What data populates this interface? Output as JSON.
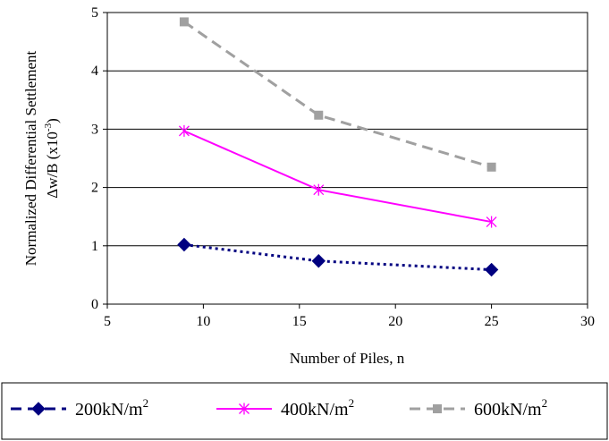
{
  "chart_data": {
    "type": "line",
    "title": "",
    "xlabel": "Number of Piles, n",
    "ylabel_line1": "Normalized Differential Settlement",
    "ylabel_line2_prefix": "Δw/B (x10",
    "ylabel_line2_exp": "-3",
    "ylabel_line2_suffix": ")",
    "xlim": [
      5,
      30
    ],
    "ylim": [
      0,
      5
    ],
    "xticks": [
      "5",
      "10",
      "15",
      "20",
      "25",
      "30"
    ],
    "yticks": [
      "0",
      "1",
      "2",
      "3",
      "4",
      "5"
    ],
    "grid": "horizontal",
    "legend_position": "bottom",
    "series": [
      {
        "name_base": "200kN/m",
        "name_exp": "2",
        "color": "#000080",
        "marker": "diamond",
        "line_style": "dotted",
        "x": [
          9,
          16,
          25
        ],
        "y": [
          1.02,
          0.74,
          0.59
        ]
      },
      {
        "name_base": "400kN/m",
        "name_exp": "2",
        "color": "#ff00ff",
        "marker": "asterisk",
        "line_style": "solid",
        "x": [
          9,
          16,
          25
        ],
        "y": [
          2.97,
          1.96,
          1.41
        ]
      },
      {
        "name_base": "600kN/m",
        "name_exp": "2",
        "color": "#a0a0a0",
        "marker": "square",
        "line_style": "dashed",
        "x": [
          9,
          16,
          25
        ],
        "y": [
          4.84,
          3.24,
          2.35
        ]
      }
    ]
  }
}
